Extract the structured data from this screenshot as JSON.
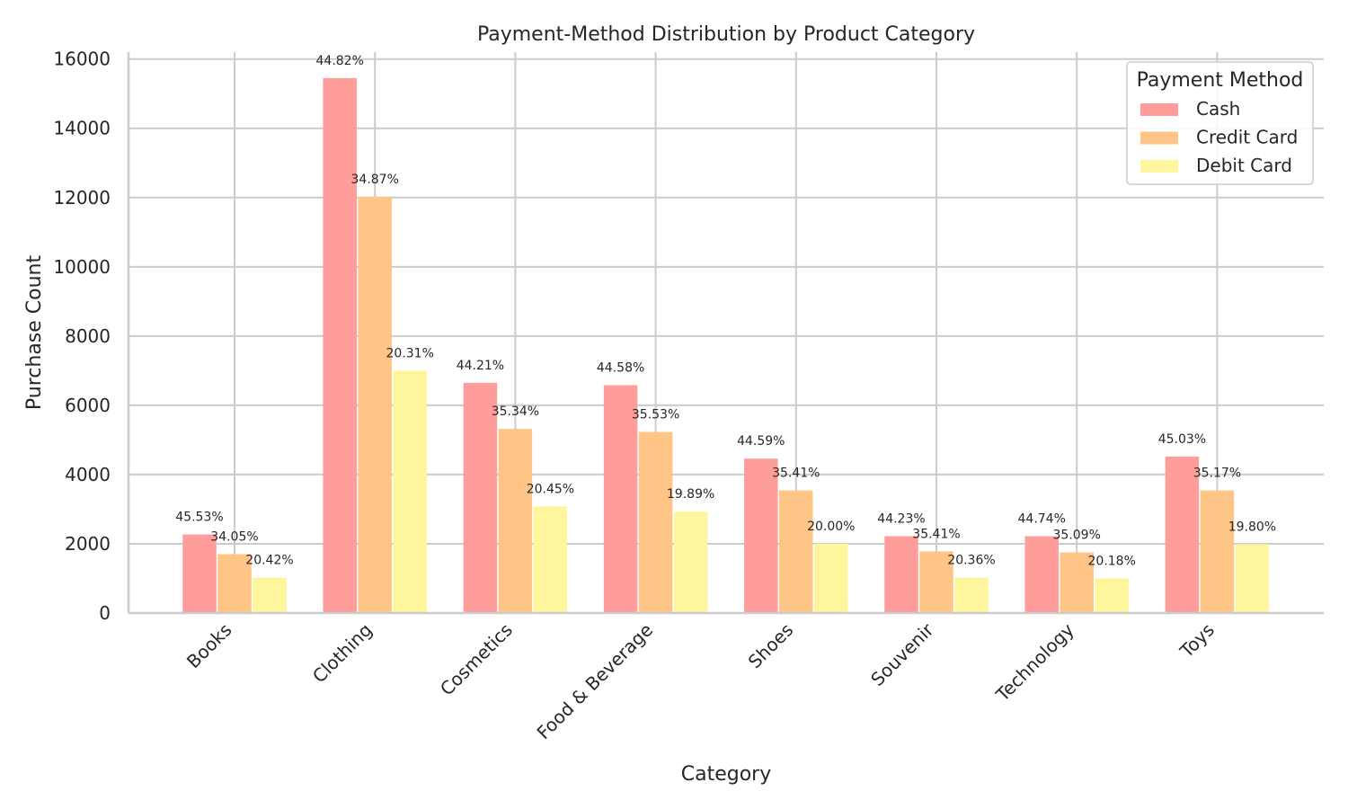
{
  "chart_data": {
    "type": "bar",
    "title": "Payment-Method Distribution by Product Category",
    "xlabel": "Category",
    "ylabel": "Purchase Count",
    "ylim": [
      0,
      16200
    ],
    "yticks": [
      0,
      2000,
      4000,
      6000,
      8000,
      10000,
      12000,
      14000,
      16000
    ],
    "grid": true,
    "legend_title": "Payment Method",
    "legend_position": "top-right",
    "categories": [
      "Books",
      "Clothing",
      "Cosmetics",
      "Food & Beverage",
      "Shoes",
      "Souvenir",
      "Technology",
      "Toys"
    ],
    "series": [
      {
        "name": "Cash",
        "color": "#ff9d9a",
        "values": [
          2270,
          15450,
          6650,
          6580,
          4460,
          2220,
          2220,
          4520
        ],
        "labels": [
          "45.53%",
          "44.82%",
          "44.21%",
          "44.58%",
          "44.59%",
          "44.23%",
          "44.74%",
          "45.03%"
        ]
      },
      {
        "name": "Credit Card",
        "color": "#ffc586",
        "values": [
          1700,
          12020,
          5320,
          5230,
          3540,
          1780,
          1750,
          3540
        ],
        "labels": [
          "34.05%",
          "34.87%",
          "35.34%",
          "35.53%",
          "35.41%",
          "35.41%",
          "35.09%",
          "35.17%"
        ]
      },
      {
        "name": "Debit Card",
        "color": "#fff59c",
        "values": [
          1020,
          7000,
          3080,
          2930,
          2000,
          1020,
          1000,
          1990
        ],
        "labels": [
          "20.42%",
          "20.31%",
          "20.45%",
          "19.89%",
          "20.00%",
          "20.36%",
          "20.18%",
          "19.80%"
        ]
      }
    ]
  }
}
